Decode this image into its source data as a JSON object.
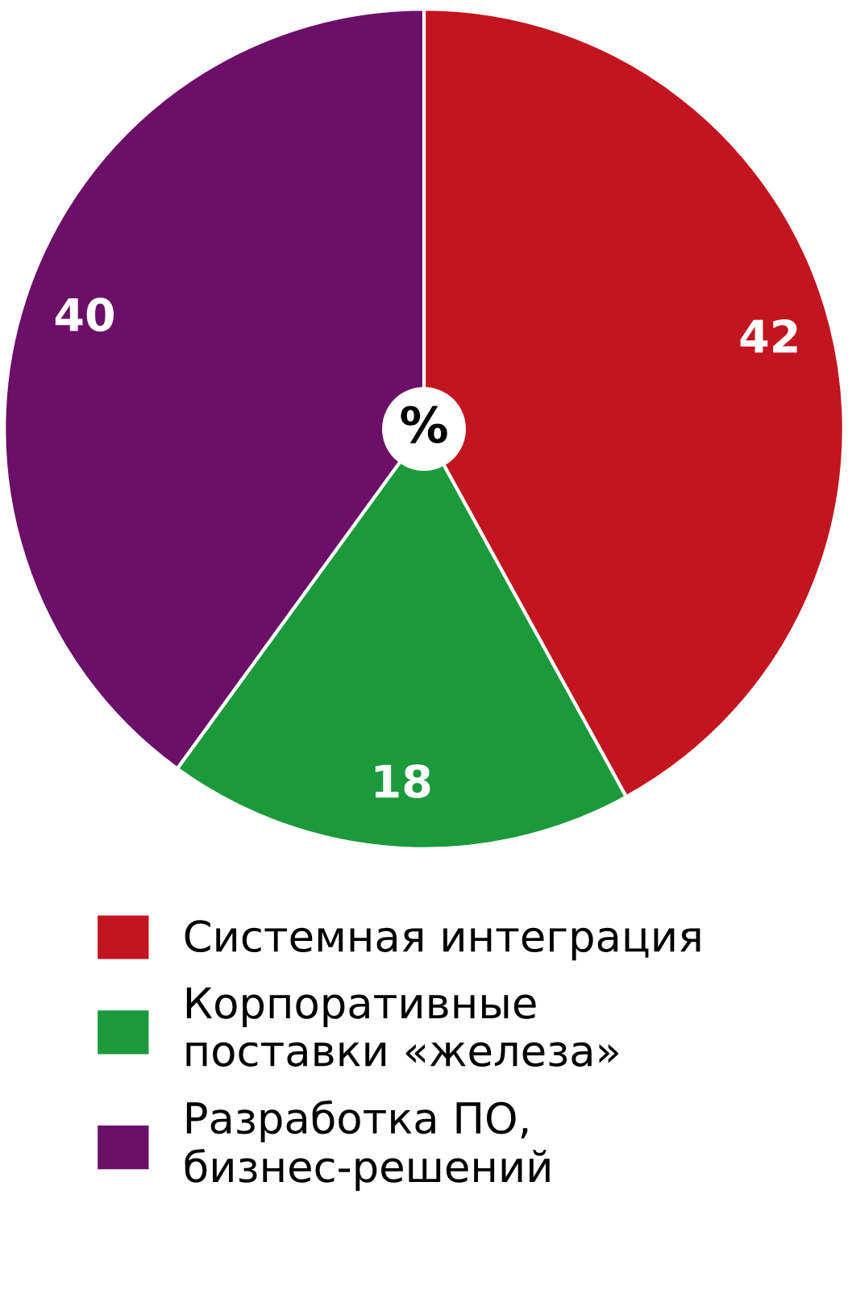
{
  "chart_data": {
    "type": "pie",
    "categories": [
      "Системная интеграция",
      "Корпоративные\nпоставки «железа»",
      "Разработка ПО,\nбизнес-решений"
    ],
    "values": [
      42,
      18,
      40
    ],
    "colors": [
      "#c3151f",
      "#1b9a3b",
      "#6c0f68"
    ],
    "data_labels": true,
    "legend": "bottom",
    "annotations": [
      "%"
    ]
  }
}
